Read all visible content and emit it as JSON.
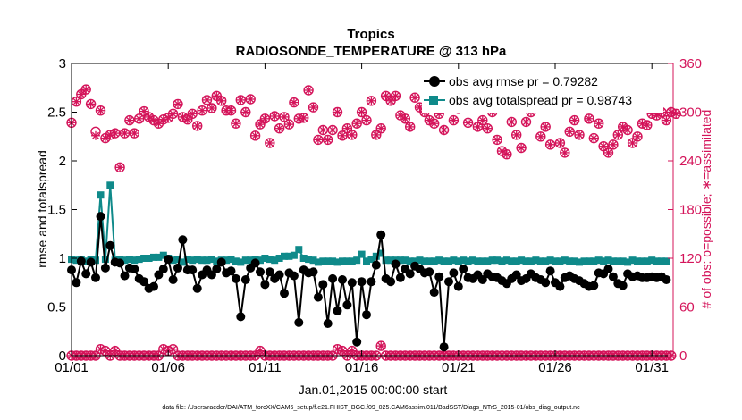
{
  "chart_data": {
    "type": "line",
    "title": "Tropics",
    "subtitle": "RADIOSONDE_TEMPERATURE @ 313 hPa",
    "xlabel": "Jan.01,2015 00:00:00 start",
    "ylabel": "rmse and totalspread",
    "ylabel_right": "# of obs: o=possible; ∗=assimilated",
    "footer": "data file: /Users/raeder/DAI/ATM_forcXX/CAM6_setup/f.e21.FHIST_BGC.f09_025.CAM6assim.011/BadSST/Diags_NTrS_2015-01/obs_diag_output.nc",
    "x_ticks": [
      {
        "label": "01/01",
        "day": 1
      },
      {
        "label": "01/06",
        "day": 6
      },
      {
        "label": "01/11",
        "day": 11
      },
      {
        "label": "01/16",
        "day": 16
      },
      {
        "label": "01/21",
        "day": 21
      },
      {
        "label": "01/26",
        "day": 26
      },
      {
        "label": "01/31",
        "day": 31
      }
    ],
    "xlim": [
      1,
      32.1
    ],
    "ylim": [
      0,
      3
    ],
    "y_ticks": [
      "0",
      "0.5",
      "1",
      "1.5",
      "2",
      "2.5",
      "3"
    ],
    "ylim_right": [
      0,
      360
    ],
    "y_ticks_right": [
      "0",
      "60",
      "120",
      "180",
      "240",
      "300",
      "360"
    ],
    "colors": {
      "rmse": "#000000",
      "spread": "#0f8a8a",
      "count": "#d4145a",
      "axis": "#000000"
    },
    "legend": [
      {
        "label": "obs avg rmse pr = 0.79282",
        "series": "rmse"
      },
      {
        "label": "obs avg totalspread pr = 0.98743",
        "series": "spread"
      }
    ],
    "legend_position": "top-right",
    "x_start": 1.0,
    "x_step": 0.25,
    "series": [
      {
        "name": "rmse",
        "values": [
          0.88,
          0.75,
          0.97,
          0.84,
          0.96,
          0.8,
          1.43,
          0.9,
          1.13,
          0.96,
          0.95,
          0.82,
          0.9,
          0.89,
          0.79,
          0.76,
          0.69,
          0.71,
          0.83,
          0.89,
          0.99,
          0.78,
          0.9,
          1.19,
          0.88,
          0.88,
          0.69,
          0.83,
          0.88,
          0.83,
          0.89,
          0.96,
          0.85,
          0.87,
          0.79,
          0.4,
          0.78,
          0.9,
          0.95,
          0.86,
          0.73,
          0.86,
          0.79,
          0.83,
          0.64,
          0.85,
          0.82,
          0.34,
          0.88,
          0.85,
          0.86,
          0.6,
          0.73,
          0.33,
          0.79,
          0.46,
          0.78,
          0.52,
          0.75,
          0.14,
          0.76,
          0.42,
          0.76,
          0.93,
          1.24,
          0.79,
          0.76,
          0.94,
          0.8,
          0.89,
          0.84,
          0.92,
          0.89,
          0.85,
          0.86,
          0.65,
          0.81,
          0.09,
          0.76,
          0.85,
          0.71,
          0.89,
          0.8,
          0.79,
          0.83,
          0.78,
          0.84,
          0.81,
          0.8,
          0.77,
          0.74,
          0.79,
          0.83,
          0.77,
          0.79,
          0.84,
          0.8,
          0.78,
          0.75,
          0.87,
          0.75,
          0.71,
          0.8,
          0.82,
          0.79,
          0.77,
          0.74,
          0.71,
          0.72,
          0.85,
          0.84,
          0.89,
          0.81,
          0.74,
          0.72,
          0.84,
          0.81,
          0.82,
          0.8,
          0.8,
          0.81,
          0.8,
          0.81,
          0.78
        ]
      },
      {
        "name": "spread",
        "values": [
          0.99,
          0.98,
          0.99,
          0.97,
          0.99,
          0.98,
          1.65,
          0.99,
          1.75,
          0.98,
          0.99,
          0.98,
          0.99,
          0.98,
          0.99,
          1.0,
          1.0,
          1.01,
          1.01,
          1.03,
          1.0,
          0.98,
          0.99,
          0.96,
          0.99,
          0.98,
          0.99,
          0.98,
          0.98,
          0.99,
          0.97,
          0.98,
          0.98,
          0.99,
          0.97,
          0.96,
          0.98,
          0.98,
          0.99,
          0.98,
          1.0,
          0.99,
          0.98,
          1.0,
          1.02,
          1.02,
          1.03,
          1.09,
          1.0,
          0.99,
          0.98,
          0.96,
          0.97,
          0.97,
          0.97,
          0.96,
          0.97,
          0.97,
          0.97,
          0.98,
          1.04,
          0.97,
          0.99,
          1.02,
          1.05,
          0.98,
          0.98,
          0.98,
          0.98,
          0.98,
          0.97,
          0.97,
          0.98,
          0.97,
          0.97,
          0.97,
          0.98,
          0.97,
          0.97,
          0.98,
          0.97,
          0.98,
          0.97,
          0.98,
          0.97,
          0.97,
          0.97,
          0.98,
          0.98,
          0.97,
          0.98,
          0.97,
          0.97,
          0.98,
          0.97,
          0.97,
          0.98,
          0.97,
          0.97,
          0.98,
          0.97,
          0.97,
          0.98,
          0.97,
          0.97,
          0.96,
          0.97,
          0.97,
          0.97,
          0.98,
          0.97,
          0.98,
          0.97,
          0.97,
          0.97,
          0.96,
          0.98,
          0.97,
          0.97,
          0.97,
          0.98,
          0.97,
          0.97,
          0.97
        ]
      },
      {
        "name": "obs_possible",
        "axis": "right",
        "values": [
          287,
          313,
          322,
          328,
          310,
          276,
          302,
          268,
          272,
          274,
          232,
          274,
          290,
          274,
          292,
          301,
          294,
          290,
          286,
          291,
          293,
          298,
          310,
          294,
          291,
          298,
          283,
          302,
          315,
          305,
          320,
          314,
          302,
          302,
          286,
          315,
          300,
          316,
          271,
          285,
          292,
          262,
          295,
          280,
          294,
          285,
          312,
          292,
          293,
          327,
          306,
          266,
          278,
          266,
          278,
          300,
          271,
          280,
          272,
          286,
          300,
          290,
          314,
          272,
          280,
          320,
          314,
          320,
          296,
          292,
          282,
          318,
          306,
          300,
          290,
          286,
          298,
          278,
          306,
          290,
          304,
          314,
          287,
          314,
          282,
          290,
          280,
          300,
          266,
          252,
          248,
          288,
          272,
          256,
          288,
          300,
          306,
          270,
          282,
          260,
          306,
          262,
          250,
          276,
          290,
          272,
          316,
          292,
          268,
          286,
          258,
          250,
          260,
          272,
          282,
          278,
          262,
          270,
          286,
          284,
          298,
          296,
          300,
          290,
          300,
          298
        ]
      },
      {
        "name": "obs_assimilated",
        "axis": "right",
        "values": [
          287,
          313,
          322,
          328,
          310,
          271,
          302,
          268,
          272,
          274,
          232,
          274,
          290,
          274,
          292,
          301,
          294,
          290,
          286,
          291,
          293,
          298,
          310,
          294,
          291,
          298,
          283,
          302,
          315,
          305,
          320,
          314,
          302,
          302,
          286,
          315,
          300,
          316,
          271,
          285,
          292,
          262,
          295,
          280,
          294,
          285,
          312,
          292,
          293,
          327,
          306,
          266,
          278,
          266,
          278,
          300,
          271,
          280,
          272,
          286,
          300,
          290,
          314,
          272,
          280,
          320,
          314,
          320,
          296,
          292,
          282,
          318,
          306,
          300,
          290,
          286,
          298,
          278,
          306,
          290,
          304,
          314,
          287,
          314,
          282,
          290,
          280,
          300,
          266,
          252,
          248,
          288,
          272,
          256,
          288,
          300,
          306,
          270,
          282,
          260,
          306,
          262,
          250,
          276,
          290,
          272,
          316,
          292,
          268,
          286,
          258,
          250,
          260,
          272,
          282,
          278,
          262,
          270,
          286,
          284,
          298,
          296,
          300,
          290,
          300,
          298
        ]
      },
      {
        "name": "obs_possible_low",
        "axis": "right",
        "values": [
          0,
          0,
          0,
          0,
          0,
          0,
          8,
          6,
          0,
          6,
          0,
          0,
          0,
          0,
          0,
          0,
          0,
          0,
          0,
          8,
          6,
          8,
          0,
          0,
          0,
          0,
          0,
          0,
          0,
          0,
          0,
          0,
          0,
          0,
          0,
          0,
          0,
          0,
          0,
          6,
          0,
          0,
          0,
          0,
          0,
          0,
          0,
          0,
          0,
          0,
          0,
          0,
          0,
          0,
          0,
          8,
          6,
          0,
          6,
          0,
          0,
          0,
          0,
          0,
          12,
          0,
          0,
          0,
          0,
          0,
          0,
          0,
          0,
          0,
          0,
          0,
          0,
          0,
          0,
          0,
          0,
          0,
          0,
          0,
          0,
          0,
          0,
          0,
          0,
          0,
          0,
          0,
          0,
          0,
          0,
          0,
          0,
          0,
          0,
          0,
          0,
          0,
          0,
          0,
          0,
          0,
          0,
          0,
          0,
          0,
          0,
          0,
          0,
          0,
          0,
          0,
          0,
          0,
          0,
          0,
          0,
          0,
          0,
          0,
          0
        ]
      }
    ]
  }
}
